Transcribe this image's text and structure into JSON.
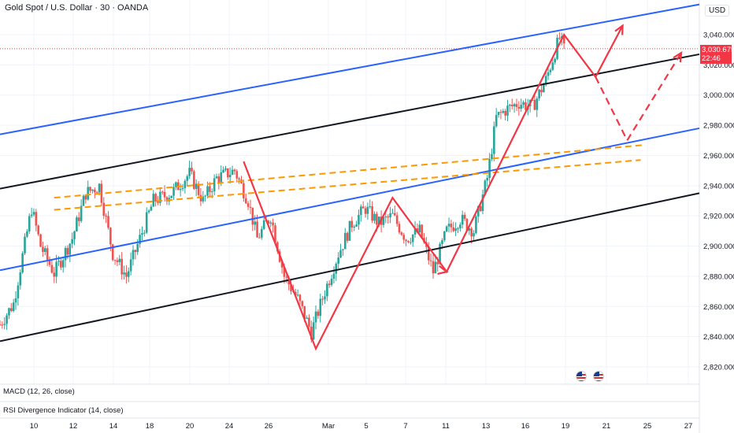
{
  "header": {
    "title": "Gold Spot / U.S. Dollar · 30 · OANDA",
    "currency": "USD"
  },
  "price_badge": {
    "price": "3,030.675",
    "countdown": "22:46"
  },
  "indicators": {
    "macd": "MACD (12, 26, close)",
    "rsi": "RSI Divergence Indicator (14, close)"
  },
  "colors": {
    "up": "#26a69a",
    "down": "#ef5350",
    "channel_blue": "#2962ff",
    "channel_black": "#131722",
    "fib_orange": "#ff9800",
    "projection_red": "#f23645",
    "price_line": "#f23645",
    "grid": "#f0f3fa"
  },
  "icons": [
    "us-flag-icon",
    "us-flag-icon"
  ],
  "chart_data": {
    "type": "candlestick",
    "symbol": "Gold Spot / U.S. Dollar",
    "interval": "30",
    "exchange": "OANDA",
    "ylim": [
      2810,
      3060
    ],
    "yticks": [
      2820,
      2840,
      2860,
      2880,
      2900,
      2920,
      2940,
      2960,
      2980,
      3000,
      3020,
      3040
    ],
    "ytick_labels": [
      "2,820.000",
      "2,840.000",
      "2,860.000",
      "2,880.000",
      "2,900.000",
      "2,920.000",
      "2,940.000",
      "2,960.000",
      "2,980.000",
      "3,000.000",
      "3,020.000",
      "3,040.000"
    ],
    "xticks": [
      "10",
      "12",
      "14",
      "18",
      "20",
      "24",
      "26",
      "Mar",
      "5",
      "7",
      "11",
      "13",
      "16",
      "19",
      "21",
      "25",
      "27"
    ],
    "last_price": 3030.675,
    "price_path": [
      {
        "t": 0,
        "p": 2848
      },
      {
        "t": 3,
        "p": 2862
      },
      {
        "t": 7,
        "p": 2925
      },
      {
        "t": 9,
        "p": 2900
      },
      {
        "t": 12,
        "p": 2882
      },
      {
        "t": 16,
        "p": 2905
      },
      {
        "t": 19,
        "p": 2935
      },
      {
        "t": 22,
        "p": 2940
      },
      {
        "t": 25,
        "p": 2895
      },
      {
        "t": 28,
        "p": 2880
      },
      {
        "t": 31,
        "p": 2905
      },
      {
        "t": 34,
        "p": 2930
      },
      {
        "t": 38,
        "p": 2935
      },
      {
        "t": 42,
        "p": 2948
      },
      {
        "t": 45,
        "p": 2930
      },
      {
        "t": 48,
        "p": 2945
      },
      {
        "t": 52,
        "p": 2950
      },
      {
        "t": 55,
        "p": 2930
      },
      {
        "t": 57,
        "p": 2905
      },
      {
        "t": 60,
        "p": 2920
      },
      {
        "t": 63,
        "p": 2880
      },
      {
        "t": 66,
        "p": 2865
      },
      {
        "t": 69,
        "p": 2843
      },
      {
        "t": 72,
        "p": 2870
      },
      {
        "t": 75,
        "p": 2895
      },
      {
        "t": 78,
        "p": 2915
      },
      {
        "t": 81,
        "p": 2925
      },
      {
        "t": 84,
        "p": 2915
      },
      {
        "t": 87,
        "p": 2920
      },
      {
        "t": 90,
        "p": 2905
      },
      {
        "t": 93,
        "p": 2910
      },
      {
        "t": 96,
        "p": 2883
      },
      {
        "t": 99,
        "p": 2910
      },
      {
        "t": 102,
        "p": 2918
      },
      {
        "t": 105,
        "p": 2910
      },
      {
        "t": 108,
        "p": 2945
      },
      {
        "t": 110,
        "p": 2985
      },
      {
        "t": 112,
        "p": 2990
      },
      {
        "t": 115,
        "p": 2995
      },
      {
        "t": 118,
        "p": 2992
      },
      {
        "t": 121,
        "p": 3010
      },
      {
        "t": 124,
        "p": 3038
      },
      {
        "t": 125,
        "p": 3030
      }
    ],
    "annotations": {
      "channel_black_upper": {
        "from": [
          0,
          2938
        ],
        "to": [
          155,
          3027
        ]
      },
      "channel_black_lower": {
        "from": [
          0,
          2837
        ],
        "to": [
          155,
          2935
        ]
      },
      "channel_blue_upper": {
        "from": [
          0,
          2974
        ],
        "to": [
          155,
          3060
        ]
      },
      "channel_blue_middle": {
        "from": [
          0,
          2884
        ],
        "to": [
          155,
          2978
        ]
      },
      "orange_dashed_1": {
        "from": [
          12,
          2932
        ],
        "to": [
          143,
          2967
        ]
      },
      "orange_dashed_2": {
        "from": [
          12,
          2924
        ],
        "to": [
          142,
          2957
        ]
      },
      "red_zigzag": [
        [
          54,
          2956
        ],
        [
          70,
          2832
        ],
        [
          87,
          2932
        ],
        [
          99,
          2883
        ],
        [
          125,
          3040
        ],
        [
          132,
          3012
        ],
        [
          138,
          3046
        ]
      ],
      "red_dashed_projection": [
        [
          132,
          3012
        ],
        [
          139,
          2970
        ],
        [
          151,
          3028
        ]
      ]
    }
  }
}
